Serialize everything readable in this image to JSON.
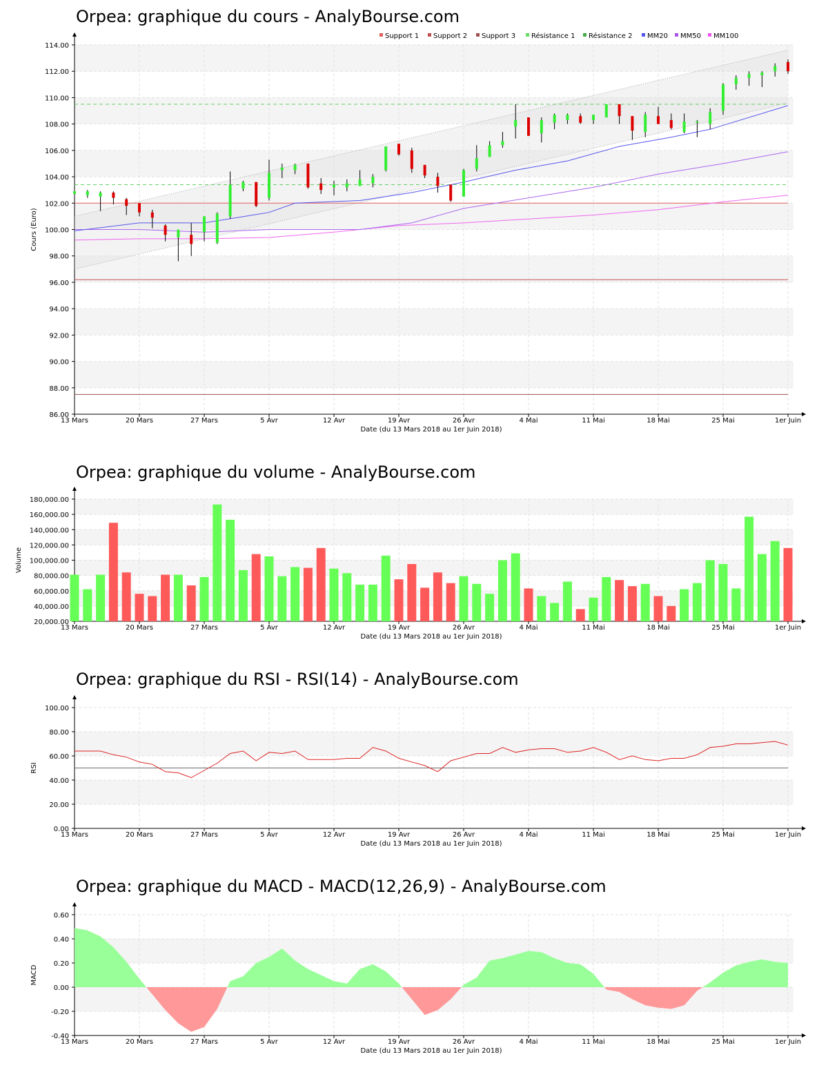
{
  "chart_data": [
    {
      "id": "price",
      "type": "candlestick",
      "title": "Orpea: graphique du cours - AnalyBourse.com",
      "ylabel": "Cours (Euro)",
      "xlabel": "Date (du 13 Mars 2018 au 1er Juin 2018)",
      "ylim": [
        86,
        114
      ],
      "yticks": [
        "86.00",
        "88.00",
        "90.00",
        "92.00",
        "94.00",
        "96.00",
        "98.00",
        "100.00",
        "102.00",
        "104.00",
        "106.00",
        "108.00",
        "110.00",
        "112.00",
        "114.00"
      ],
      "xticks": [
        "13 Mars",
        "20 Mars",
        "27 Mars",
        "5 Avr",
        "12 Avr",
        "19 Avr",
        "26 Avr",
        "4 Mai",
        "11 Mai",
        "18 Mai",
        "25 Mai",
        "1er Juin"
      ],
      "legend": [
        {
          "name": "Support 1",
          "color": "#e06060"
        },
        {
          "name": "Support 2",
          "color": "#c05050"
        },
        {
          "name": "Support 3",
          "color": "#a05050"
        },
        {
          "name": "Résistance 1",
          "color": "#66dd66"
        },
        {
          "name": "Résistance 2",
          "color": "#44aa44"
        },
        {
          "name": "MM20",
          "color": "#5555ee"
        },
        {
          "name": "MM50",
          "color": "#aa55ee"
        },
        {
          "name": "MM100",
          "color": "#ee55ee"
        }
      ],
      "legend_position": "top-right",
      "levels": {
        "support1": 102.0,
        "support2": 96.2,
        "support3": 87.5,
        "resistance1": 103.4,
        "resistance2": 109.5
      },
      "channel": {
        "upper": [
          101.0,
          113.6
        ],
        "lower": [
          97.0,
          109.6
        ]
      },
      "candles": [
        {
          "o": 102.7,
          "h": 103.2,
          "l": 102.1,
          "c": 102.9
        },
        {
          "o": 102.6,
          "h": 103.0,
          "l": 102.4,
          "c": 102.9
        },
        {
          "o": 102.5,
          "h": 102.9,
          "l": 101.4,
          "c": 102.8
        },
        {
          "o": 102.8,
          "h": 102.9,
          "l": 101.9,
          "c": 102.4
        },
        {
          "o": 102.3,
          "h": 102.4,
          "l": 101.1,
          "c": 101.8
        },
        {
          "o": 102.0,
          "h": 102.0,
          "l": 101.0,
          "c": 101.3
        },
        {
          "o": 101.3,
          "h": 101.5,
          "l": 100.1,
          "c": 100.9
        },
        {
          "o": 100.3,
          "h": 100.4,
          "l": 99.1,
          "c": 99.6
        },
        {
          "o": 99.4,
          "h": 99.9,
          "l": 97.6,
          "c": 100.0
        },
        {
          "o": 99.6,
          "h": 100.5,
          "l": 98.0,
          "c": 98.9
        },
        {
          "o": 99.8,
          "h": 101.0,
          "l": 99.1,
          "c": 101.0
        },
        {
          "o": 99.0,
          "h": 101.3,
          "l": 98.9,
          "c": 101.2
        },
        {
          "o": 101.0,
          "h": 104.4,
          "l": 100.8,
          "c": 103.4
        },
        {
          "o": 103.1,
          "h": 103.7,
          "l": 102.9,
          "c": 103.6
        },
        {
          "o": 103.6,
          "h": 103.6,
          "l": 101.7,
          "c": 101.8
        },
        {
          "o": 102.4,
          "h": 105.3,
          "l": 102.2,
          "c": 104.3
        },
        {
          "o": 104.5,
          "h": 105.0,
          "l": 103.9,
          "c": 104.7
        },
        {
          "o": 104.5,
          "h": 105.0,
          "l": 104.2,
          "c": 104.9
        },
        {
          "o": 105.0,
          "h": 105.0,
          "l": 103.1,
          "c": 103.2
        },
        {
          "o": 103.5,
          "h": 103.9,
          "l": 102.7,
          "c": 103.0
        },
        {
          "o": 103.2,
          "h": 103.7,
          "l": 102.6,
          "c": 103.4
        },
        {
          "o": 103.2,
          "h": 103.8,
          "l": 102.9,
          "c": 103.5
        },
        {
          "o": 103.3,
          "h": 104.5,
          "l": 103.3,
          "c": 103.8
        },
        {
          "o": 103.5,
          "h": 104.2,
          "l": 103.2,
          "c": 104.0
        },
        {
          "o": 104.5,
          "h": 106.3,
          "l": 104.4,
          "c": 106.3
        },
        {
          "o": 106.5,
          "h": 106.5,
          "l": 105.6,
          "c": 105.7
        },
        {
          "o": 106.0,
          "h": 106.2,
          "l": 104.3,
          "c": 104.6
        },
        {
          "o": 104.9,
          "h": 104.9,
          "l": 103.9,
          "c": 104.1
        },
        {
          "o": 104.0,
          "h": 104.3,
          "l": 102.8,
          "c": 103.3
        },
        {
          "o": 103.4,
          "h": 103.4,
          "l": 102.1,
          "c": 102.2
        },
        {
          "o": 102.5,
          "h": 104.6,
          "l": 102.5,
          "c": 104.5
        },
        {
          "o": 104.6,
          "h": 106.4,
          "l": 104.4,
          "c": 105.4
        },
        {
          "o": 105.5,
          "h": 106.7,
          "l": 105.5,
          "c": 106.4
        },
        {
          "o": 106.4,
          "h": 107.4,
          "l": 106.2,
          "c": 106.7
        },
        {
          "o": 107.8,
          "h": 109.5,
          "l": 106.9,
          "c": 108.3
        },
        {
          "o": 108.5,
          "h": 108.5,
          "l": 107.1,
          "c": 107.1
        },
        {
          "o": 107.3,
          "h": 108.5,
          "l": 106.6,
          "c": 108.3
        },
        {
          "o": 108.1,
          "h": 108.8,
          "l": 107.6,
          "c": 108.7
        },
        {
          "o": 108.3,
          "h": 108.8,
          "l": 108.0,
          "c": 108.7
        },
        {
          "o": 108.6,
          "h": 108.8,
          "l": 108.0,
          "c": 108.1
        },
        {
          "o": 108.3,
          "h": 108.7,
          "l": 108.0,
          "c": 108.7
        },
        {
          "o": 108.5,
          "h": 109.5,
          "l": 108.5,
          "c": 109.5
        },
        {
          "o": 109.5,
          "h": 109.5,
          "l": 108.0,
          "c": 108.6
        },
        {
          "o": 108.6,
          "h": 108.6,
          "l": 106.8,
          "c": 107.5
        },
        {
          "o": 107.4,
          "h": 108.9,
          "l": 107.0,
          "c": 108.7
        },
        {
          "o": 108.6,
          "h": 109.3,
          "l": 108.0,
          "c": 108.0
        },
        {
          "o": 108.3,
          "h": 108.8,
          "l": 107.6,
          "c": 107.7
        },
        {
          "o": 107.4,
          "h": 108.8,
          "l": 107.3,
          "c": 108.2
        },
        {
          "o": 108.1,
          "h": 108.3,
          "l": 107.0,
          "c": 108.2
        },
        {
          "o": 108.0,
          "h": 109.2,
          "l": 107.6,
          "c": 108.9
        },
        {
          "o": 109.0,
          "h": 111.1,
          "l": 108.7,
          "c": 111.0
        },
        {
          "o": 111.0,
          "h": 111.7,
          "l": 110.6,
          "c": 111.5
        },
        {
          "o": 111.5,
          "h": 112.0,
          "l": 110.9,
          "c": 111.8
        },
        {
          "o": 111.7,
          "h": 112.0,
          "l": 110.8,
          "c": 111.9
        },
        {
          "o": 112.0,
          "h": 112.6,
          "l": 111.6,
          "c": 112.4
        },
        {
          "o": 112.7,
          "h": 112.9,
          "l": 111.8,
          "c": 112.0
        }
      ],
      "mm20": [
        [
          0,
          99.9
        ],
        [
          5,
          100.5
        ],
        [
          10,
          100.5
        ],
        [
          15,
          101.3
        ],
        [
          17,
          102.0
        ],
        [
          22,
          102.2
        ],
        [
          26,
          102.8
        ],
        [
          30,
          103.6
        ],
        [
          34,
          104.5
        ],
        [
          38,
          105.2
        ],
        [
          42,
          106.3
        ],
        [
          46,
          107.0
        ],
        [
          49,
          107.6
        ],
        [
          55,
          109.4
        ]
      ],
      "mm50": [
        [
          0,
          100.0
        ],
        [
          5,
          100.0
        ],
        [
          10,
          99.8
        ],
        [
          15,
          100.0
        ],
        [
          22,
          100.0
        ],
        [
          26,
          100.5
        ],
        [
          30,
          101.6
        ],
        [
          35,
          102.4
        ],
        [
          40,
          103.2
        ],
        [
          45,
          104.2
        ],
        [
          50,
          105.0
        ],
        [
          55,
          105.9
        ]
      ],
      "mm100": [
        [
          0,
          99.2
        ],
        [
          5,
          99.3
        ],
        [
          10,
          99.3
        ],
        [
          15,
          99.4
        ],
        [
          20,
          99.8
        ],
        [
          25,
          100.3
        ],
        [
          30,
          100.5
        ],
        [
          35,
          100.8
        ],
        [
          40,
          101.1
        ],
        [
          45,
          101.5
        ],
        [
          50,
          102.1
        ],
        [
          55,
          102.6
        ]
      ]
    },
    {
      "id": "volume",
      "type": "bar",
      "title": "Orpea: graphique du volume - AnalyBourse.com",
      "ylabel": "Volume",
      "xlabel": "Date (du 13 Mars 2018 au 1er Juin 2018)",
      "ylim": [
        20000,
        180000
      ],
      "yticks": [
        "20,000.00",
        "40,000.00",
        "60,000.00",
        "80,000.00",
        "100,000.00",
        "120,000.00",
        "140,000.00",
        "160,000.00",
        "180,000.00"
      ],
      "xticks": [
        "13 Mars",
        "20 Mars",
        "27 Mars",
        "5 Avr",
        "12 Avr",
        "19 Avr",
        "26 Avr",
        "4 Mai",
        "11 Mai",
        "18 Mai",
        "25 Mai",
        "1er Juin"
      ],
      "values": [
        81000,
        62000,
        81000,
        149000,
        84000,
        56000,
        53000,
        81000,
        81000,
        67000,
        78000,
        173000,
        153000,
        87000,
        108000,
        105000,
        79000,
        91000,
        90000,
        116000,
        89000,
        83000,
        68000,
        68000,
        106000,
        75000,
        95000,
        64000,
        84000,
        70000,
        79000,
        69000,
        56000,
        100000,
        109000,
        63000,
        53000,
        44000,
        72000,
        36000,
        51000,
        78000,
        74000,
        66000,
        69000,
        53000,
        40000,
        62000,
        70000,
        100000,
        95000,
        63000,
        157000,
        108000,
        125000,
        116000
      ]
    },
    {
      "id": "rsi",
      "type": "line",
      "title": "Orpea: graphique du RSI - RSI(14) - AnalyBourse.com",
      "ylabel": "RSI",
      "xlabel": "Date (du 13 Mars 2018 au 1er Juin 2018)",
      "ylim": [
        0,
        100
      ],
      "yticks": [
        "0.00",
        "20.00",
        "40.00",
        "60.00",
        "80.00",
        "100.00"
      ],
      "xticks": [
        "13 Mars",
        "20 Mars",
        "27 Mars",
        "5 Avr",
        "12 Avr",
        "19 Avr",
        "26 Avr",
        "4 Mai",
        "11 Mai",
        "18 Mai",
        "25 Mai",
        "1er Juin"
      ],
      "reference": 50,
      "values": [
        64,
        64,
        64,
        61,
        59,
        55,
        53,
        47,
        46,
        42,
        48,
        54,
        62,
        64,
        56,
        63,
        62,
        64,
        57,
        57,
        57,
        58,
        58,
        67,
        64,
        58,
        55,
        52,
        47,
        56,
        59,
        62,
        62,
        67,
        63,
        65,
        66,
        66,
        63,
        64,
        67,
        63,
        57,
        60,
        57,
        56,
        58,
        58,
        61,
        67,
        68,
        70,
        70,
        71,
        72,
        69
      ]
    },
    {
      "id": "macd",
      "type": "area",
      "title": "Orpea: graphique du MACD - MACD(12,26,9) - AnalyBourse.com",
      "ylabel": "MACD",
      "xlabel": "Date (du 13 Mars 2018 au 1er Juin 2018)",
      "ylim": [
        -0.4,
        0.6
      ],
      "yticks": [
        "-0.40",
        "-0.20",
        "0.00",
        "0.20",
        "0.40",
        "0.60"
      ],
      "xticks": [
        "13 Mars",
        "20 Mars",
        "27 Mars",
        "5 Avr",
        "12 Avr",
        "19 Avr",
        "26 Avr",
        "4 Mai",
        "11 Mai",
        "18 Mai",
        "25 Mai",
        "1er Juin"
      ],
      "values": [
        0.49,
        0.47,
        0.42,
        0.33,
        0.21,
        0.07,
        -0.06,
        -0.19,
        -0.3,
        -0.37,
        -0.33,
        -0.18,
        0.05,
        0.09,
        0.2,
        0.25,
        0.32,
        0.22,
        0.15,
        0.1,
        0.05,
        0.03,
        0.15,
        0.19,
        0.13,
        0.03,
        -0.1,
        -0.23,
        -0.19,
        -0.1,
        0.02,
        0.08,
        0.22,
        0.24,
        0.27,
        0.3,
        0.29,
        0.24,
        0.2,
        0.19,
        0.11,
        -0.02,
        -0.04,
        -0.1,
        -0.15,
        -0.17,
        -0.18,
        -0.15,
        -0.03,
        0.04,
        0.12,
        0.18,
        0.21,
        0.23,
        0.21,
        0.2
      ]
    }
  ]
}
